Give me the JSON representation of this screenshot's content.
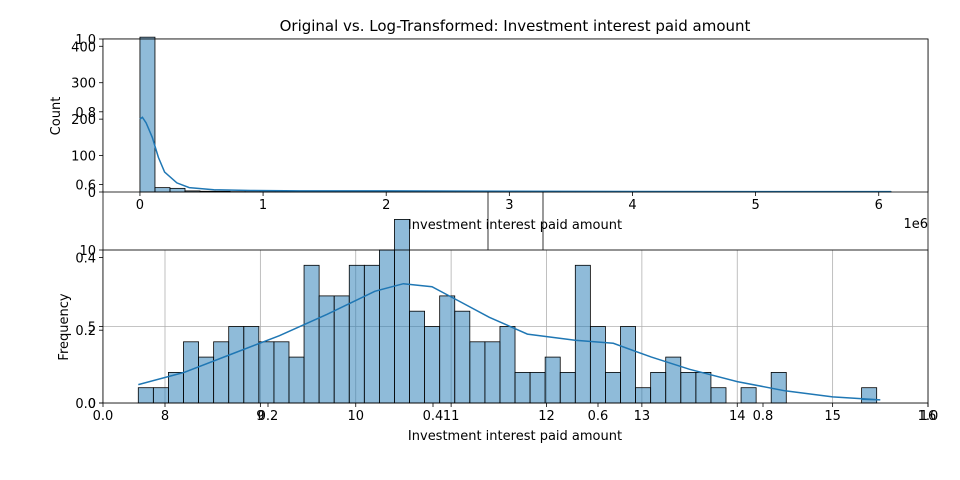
{
  "figure": {
    "title": "Original vs. Log-Transformed: Investment interest paid amount"
  },
  "chart_data": [
    {
      "type": "histogram",
      "panel": "top",
      "xlabel": "Investment interest paid amount",
      "ylabel": "Count",
      "x_offset_label": "1e6",
      "xlim": [
        -0.3,
        6.4
      ],
      "ylim": [
        0,
        420
      ],
      "xticks": [
        0,
        1,
        2,
        3,
        4,
        5,
        6
      ],
      "yticks": [
        0,
        100,
        200,
        300,
        400
      ],
      "bin_start": 0.0,
      "bin_width": 0.122,
      "counts": [
        425,
        12,
        10,
        3,
        2,
        2,
        1,
        1,
        1,
        1,
        1,
        1,
        1,
        1,
        1,
        1,
        1,
        1,
        1,
        1,
        1,
        1,
        1,
        1,
        1,
        1,
        1,
        1,
        1,
        1,
        1,
        1,
        1,
        1,
        1,
        1,
        1,
        1,
        1,
        1,
        1,
        1,
        1,
        1,
        1,
        1,
        1,
        1,
        1,
        1
      ],
      "kde": {
        "x": [
          0,
          0.02,
          0.05,
          0.1,
          0.15,
          0.2,
          0.3,
          0.4,
          0.6,
          0.9,
          1.3,
          2.0,
          3.0,
          4.0,
          5.0,
          6.1
        ],
        "y": [
          200,
          205,
          190,
          150,
          95,
          55,
          25,
          12,
          6,
          4,
          3,
          3,
          2,
          1.5,
          1,
          1
        ]
      },
      "grid": false
    },
    {
      "type": "histogram",
      "panel": "bottom",
      "xlabel": "Investment interest paid amount",
      "ylabel": "Frequency",
      "xlim": [
        7.35,
        16.0
      ],
      "ylim": [
        0,
        10
      ],
      "xticks": [
        8,
        9,
        10,
        11,
        12,
        13,
        14,
        15,
        16
      ],
      "yticks": [
        0,
        5,
        10
      ],
      "bin_start": 7.72,
      "bin_width": 0.158,
      "counts": [
        1,
        1,
        2,
        4,
        3,
        4,
        5,
        5,
        4,
        4,
        3,
        9,
        7,
        7,
        9,
        9,
        10,
        12,
        6,
        5,
        7,
        6,
        4,
        4,
        5,
        2,
        2,
        3,
        2,
        9,
        5,
        2,
        5,
        1,
        2,
        3,
        2,
        2,
        1,
        0,
        1,
        0,
        2,
        0,
        0,
        0,
        0,
        0,
        1
      ],
      "kde": {
        "x": [
          7.72,
          8.2,
          8.7,
          9.2,
          9.7,
          10.2,
          10.5,
          10.8,
          11.1,
          11.4,
          11.8,
          12.3,
          12.7,
          13.1,
          13.5,
          14.0,
          14.5,
          15.0,
          15.5,
          15.3
        ],
        "y": [
          1.2,
          2.0,
          3.2,
          4.4,
          5.8,
          7.3,
          7.8,
          7.6,
          6.6,
          5.6,
          4.5,
          4.1,
          3.9,
          3.0,
          2.2,
          1.4,
          0.8,
          0.4,
          0.2,
          0.25
        ]
      },
      "grid": true
    },
    {
      "type": "line",
      "panel": "overlay",
      "xlim": [
        0,
        1
      ],
      "ylim": [
        0,
        1
      ],
      "xticks": [
        "0.0",
        "0.2",
        "0.4",
        "0.6",
        "0.8",
        "1.0"
      ],
      "yticks": [
        "0.0",
        "0.2",
        "0.4",
        "0.6",
        "0.8",
        "1.0"
      ],
      "xlabel": "",
      "ylabel": ""
    }
  ]
}
